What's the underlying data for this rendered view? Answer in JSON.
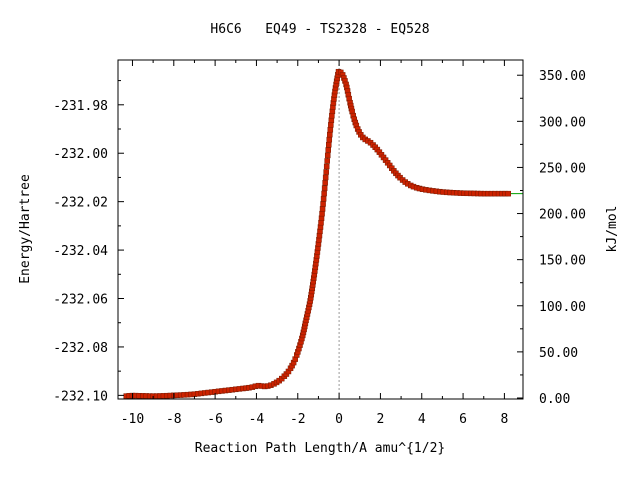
{
  "chart_data": {
    "type": "line",
    "title": "H6C6   EQ49 - TS2328 - EQ528",
    "xlabel": "Reaction Path Length/A amu^{1/2}",
    "ylabel": "Energy/Hartree",
    "y2label": "kJ/mol",
    "xlim": [
      -10.7,
      8.9
    ],
    "ylim": [
      -232.1015,
      -231.9615
    ],
    "y2lim": [
      -1.1,
      366.5
    ],
    "x_ticks": [
      -10,
      -8,
      -6,
      -4,
      -2,
      0,
      2,
      4,
      6,
      8
    ],
    "x_tick_labels": [
      "-10",
      "-8",
      "-6",
      "-4",
      "-2",
      "0",
      "2",
      "4",
      "6",
      "8"
    ],
    "y_ticks": [
      -231.98,
      -232.0,
      -232.02,
      -232.04,
      -232.06,
      -232.08,
      -232.1
    ],
    "y_tick_labels": [
      "-231.98",
      "-232.00",
      "-232.02",
      "-232.04",
      "-232.06",
      "-232.08",
      "-232.10"
    ],
    "y2_ticks": [
      350,
      300,
      250,
      200,
      150,
      100,
      50,
      0
    ],
    "y2_tick_labels": [
      "350.00",
      "300.00",
      "250.00",
      "200.00",
      "150.00",
      "100.00",
      "50.00",
      "0.00"
    ],
    "ts_x": 0,
    "grid": false,
    "colors": {
      "curve": "#00a000",
      "marker": "#cc2200",
      "marker_edge": "#7a1a00",
      "ts_line": "#999999"
    },
    "series": [
      {
        "x": [
          -10.3,
          -10.0,
          -9.5,
          -9.0,
          -8.5,
          -8.0,
          -7.5,
          -7.0,
          -6.5,
          -6.0,
          -5.5,
          -5.0,
          -4.5,
          -4.2,
          -3.9,
          -3.6,
          -3.3,
          -3.0,
          -2.7,
          -2.4,
          -2.1,
          -1.8,
          -1.6,
          -1.4,
          -1.25,
          -1.1,
          -0.95,
          -0.8,
          -0.65,
          -0.5,
          -0.35,
          -0.2,
          -0.05,
          0.0,
          0.1,
          0.2,
          0.35,
          0.5,
          0.7,
          0.9,
          1.1,
          1.3,
          1.5,
          1.8,
          2.1,
          2.4,
          2.7,
          3.0,
          3.3,
          3.6,
          4.0,
          4.5,
          5.0,
          5.5,
          6.0,
          6.5,
          7.0,
          7.5,
          8.0,
          8.3,
          8.9
        ],
        "y": [
          -232.1003,
          -232.1001,
          -232.1002,
          -232.1003,
          -232.1002,
          -232.1,
          -232.0998,
          -232.0995,
          -232.099,
          -232.0985,
          -232.098,
          -232.0975,
          -232.097,
          -232.0966,
          -232.096,
          -232.0963,
          -232.0958,
          -232.0945,
          -232.0925,
          -232.0895,
          -232.0845,
          -232.0765,
          -232.069,
          -232.061,
          -232.053,
          -232.044,
          -232.034,
          -232.023,
          -232.01,
          -231.9965,
          -231.9845,
          -231.9745,
          -231.9672,
          -231.9662,
          -231.9668,
          -231.9682,
          -231.972,
          -231.978,
          -231.985,
          -231.99,
          -231.993,
          -231.9945,
          -231.9955,
          -231.998,
          -232.0012,
          -232.0045,
          -232.0078,
          -232.0105,
          -232.0125,
          -232.0138,
          -232.0148,
          -232.0155,
          -232.016,
          -232.0163,
          -232.0165,
          -232.0166,
          -232.0167,
          -232.0167,
          -232.0167,
          -232.0167,
          -232.0167
        ]
      }
    ]
  }
}
